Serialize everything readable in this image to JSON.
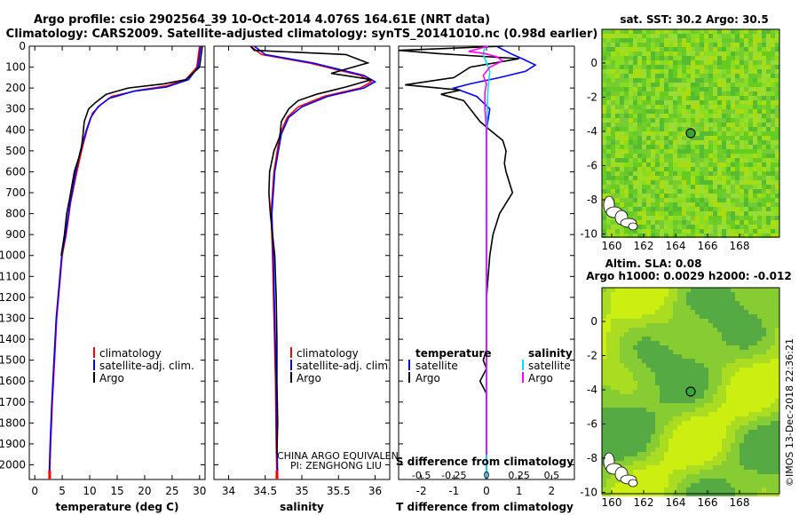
{
  "header": {
    "line1": "Argo profile: csio 2902564_39 10-Oct-2014 4.076S 164.61E (NRT data)",
    "line2": "Climatology: CARS2009. Satellite-adjusted climatology: synTS_20141010.nc (0.98d earlier)"
  },
  "colors": {
    "climatology": "#ff0000",
    "satellite": "#0000ff",
    "argo": "#000000",
    "sat_salinity": "#00e5ff",
    "argo_salinity": "#ff00ff"
  },
  "legend1": {
    "climatology": "climatology",
    "satellite": "satellite-adj. clim.",
    "argo": "Argo"
  },
  "legend3": {
    "temp_title": "temperature",
    "sal_title": "salinity",
    "satellite": "satellite",
    "argo": "Argo"
  },
  "credits": {
    "line1": "CHINA ARGO EQUIVALENT",
    "line2": "PI: ZENGHONG LIU"
  },
  "map1": {
    "title": "sat. SST: 30.2 Argo: 30.5"
  },
  "map2": {
    "title1": "Altim. SLA: 0.08",
    "title2": "Argo h1000: 0.0029 h2000: -0.012"
  },
  "watermark": "©IMOS 13-Dec-2018 22:36:21",
  "chart_data": [
    {
      "type": "line",
      "id": "temp",
      "xlabel": "temperature (deg C)",
      "ylabel": "",
      "xlim": [
        -1,
        31
      ],
      "ylim": [
        2070,
        0
      ],
      "xticks": [
        0,
        5,
        10,
        15,
        20,
        25,
        30
      ],
      "yticks": [
        0,
        100,
        200,
        300,
        400,
        500,
        600,
        700,
        800,
        900,
        1000,
        1100,
        1200,
        1300,
        1400,
        1500,
        1600,
        1700,
        1800,
        1900,
        2000
      ],
      "series": [
        {
          "name": "climatology",
          "color": "#ff0000",
          "points": [
            [
              30,
              0
            ],
            [
              29.8,
              40
            ],
            [
              29.5,
              100
            ],
            [
              27.5,
              160
            ],
            [
              24,
              190
            ],
            [
              19,
              210
            ],
            [
              14,
              240
            ],
            [
              12,
              280
            ],
            [
              10.5,
              320
            ],
            [
              9.5,
              400
            ],
            [
              8.5,
              500
            ],
            [
              7.5,
              620
            ],
            [
              6.5,
              750
            ],
            [
              5.7,
              900
            ],
            [
              5,
              1000
            ],
            [
              4.5,
              1150
            ],
            [
              4,
              1300
            ],
            [
              3.6,
              1500
            ],
            [
              3.2,
              1700
            ],
            [
              2.9,
              1900
            ],
            [
              2.7,
              2060
            ]
          ]
        },
        {
          "name": "satellite-adj. clim.",
          "color": "#0000ff",
          "points": [
            [
              30.2,
              0
            ],
            [
              30,
              40
            ],
            [
              29.7,
              100
            ],
            [
              28,
              160
            ],
            [
              24,
              195
            ],
            [
              18,
              215
            ],
            [
              13.5,
              250
            ],
            [
              11.5,
              290
            ],
            [
              10.2,
              340
            ],
            [
              9.4,
              400
            ],
            [
              8.3,
              500
            ],
            [
              7.3,
              620
            ],
            [
              6.4,
              750
            ],
            [
              5.6,
              900
            ],
            [
              4.9,
              1000
            ],
            [
              4.4,
              1150
            ],
            [
              3.9,
              1300
            ],
            [
              3.5,
              1500
            ],
            [
              3.1,
              1700
            ],
            [
              2.8,
              1900
            ],
            [
              2.6,
              2060
            ]
          ]
        },
        {
          "name": "Argo",
          "color": "#000000",
          "points": [
            [
              30.5,
              0
            ],
            [
              30.3,
              40
            ],
            [
              30,
              100
            ],
            [
              27.5,
              160
            ],
            [
              23.5,
              180
            ],
            [
              17,
              200
            ],
            [
              13,
              230
            ],
            [
              11,
              270
            ],
            [
              9.8,
              300
            ],
            [
              9,
              360
            ],
            [
              8.8,
              420
            ],
            [
              8.4,
              500
            ],
            [
              7.2,
              600
            ],
            [
              6.4,
              720
            ],
            [
              5.8,
              800
            ],
            [
              5.4,
              900
            ],
            [
              4.8,
              1000
            ]
          ]
        }
      ]
    },
    {
      "type": "line",
      "id": "sal",
      "xlabel": "salinity",
      "ylabel": "",
      "xlim": [
        33.8,
        36.2
      ],
      "ylim": [
        2070,
        0
      ],
      "xticks": [
        34,
        34.5,
        35,
        35.5,
        36
      ],
      "series": [
        {
          "name": "climatology",
          "color": "#ff0000",
          "points": [
            [
              34.3,
              0
            ],
            [
              34.45,
              40
            ],
            [
              35.1,
              80
            ],
            [
              35.8,
              140
            ],
            [
              35.95,
              170
            ],
            [
              35.8,
              200
            ],
            [
              35.3,
              240
            ],
            [
              34.95,
              290
            ],
            [
              34.8,
              340
            ],
            [
              34.7,
              420
            ],
            [
              34.62,
              600
            ],
            [
              34.58,
              800
            ],
            [
              34.6,
              1000
            ],
            [
              34.62,
              1300
            ],
            [
              34.64,
              1600
            ],
            [
              34.65,
              1900
            ],
            [
              34.66,
              2060
            ]
          ]
        },
        {
          "name": "satellite-adj. clim.",
          "color": "#0000ff",
          "points": [
            [
              34.35,
              0
            ],
            [
              34.5,
              40
            ],
            [
              35.15,
              80
            ],
            [
              35.85,
              140
            ],
            [
              36,
              170
            ],
            [
              35.85,
              200
            ],
            [
              35.35,
              240
            ],
            [
              35,
              290
            ],
            [
              34.82,
              340
            ],
            [
              34.72,
              420
            ],
            [
              34.63,
              600
            ],
            [
              34.59,
              800
            ],
            [
              34.61,
              1000
            ],
            [
              34.63,
              1300
            ],
            [
              34.65,
              1600
            ],
            [
              34.66,
              1900
            ],
            [
              34.67,
              2060
            ]
          ]
        },
        {
          "name": "Argo",
          "color": "#000000",
          "points": [
            [
              34.3,
              0
            ],
            [
              34.35,
              20
            ],
            [
              35.6,
              40
            ],
            [
              35.9,
              80
            ],
            [
              35.4,
              130
            ],
            [
              35.95,
              160
            ],
            [
              35.6,
              195
            ],
            [
              35.2,
              230
            ],
            [
              34.95,
              260
            ],
            [
              34.82,
              300
            ],
            [
              34.72,
              360
            ],
            [
              34.7,
              430
            ],
            [
              34.62,
              500
            ],
            [
              34.56,
              600
            ],
            [
              34.55,
              700
            ],
            [
              34.57,
              800
            ],
            [
              34.6,
              900
            ],
            [
              34.63,
              1000
            ],
            [
              34.65,
              1200
            ],
            [
              34.66,
              1400
            ],
            [
              34.66,
              1600
            ],
            [
              34.67,
              1800
            ],
            [
              34.66,
              1950
            ]
          ]
        }
      ]
    },
    {
      "type": "line",
      "id": "diff",
      "xlabel": "T difference from climatology",
      "xlabel2": "S difference from climatology",
      "xlim": [
        -2.7,
        2.7
      ],
      "ylim": [
        2070,
        0
      ],
      "xticks": [
        -2,
        -1,
        0,
        1,
        2
      ],
      "xticks2": [
        -0.5,
        -0.25,
        0,
        0.25,
        0.5
      ],
      "xtick2_labels": [
        "-0.5",
        "-0.25",
        "0",
        "0.25",
        "0.5"
      ],
      "series": [
        {
          "name": "temperature satellite",
          "color": "#0000ff",
          "points": [
            [
              0.3,
              0
            ],
            [
              0.8,
              40
            ],
            [
              1.1,
              60
            ],
            [
              1.5,
              90
            ],
            [
              1.2,
              120
            ],
            [
              0.4,
              150
            ],
            [
              -0.5,
              180
            ],
            [
              -1,
              200
            ],
            [
              -0.3,
              240
            ],
            [
              0.1,
              300
            ],
            [
              0,
              400
            ],
            [
              0,
              600
            ],
            [
              0,
              800
            ],
            [
              0,
              1000
            ],
            [
              0,
              1500
            ],
            [
              0,
              2060
            ]
          ]
        },
        {
          "name": "temperature Argo",
          "color": "#000000",
          "points": [
            [
              0.5,
              0
            ],
            [
              -2.7,
              20
            ],
            [
              -1.5,
              35
            ],
            [
              1,
              60
            ],
            [
              -0.5,
              100
            ],
            [
              -1,
              150
            ],
            [
              -2.5,
              185
            ],
            [
              -0.8,
              210
            ],
            [
              -1.4,
              230
            ],
            [
              -0.7,
              260
            ],
            [
              -0.5,
              300
            ],
            [
              -0.2,
              360
            ],
            [
              0.1,
              400
            ],
            [
              0.5,
              450
            ],
            [
              0.6,
              500
            ],
            [
              0.55,
              560
            ],
            [
              0.6,
              600
            ],
            [
              0.8,
              700
            ],
            [
              0.4,
              800
            ],
            [
              0.2,
              900
            ],
            [
              0.1,
              1000
            ],
            [
              0,
              1200
            ],
            [
              0,
              1450
            ],
            [
              -0.1,
              1500
            ],
            [
              0,
              1540
            ],
            [
              -0.2,
              1600
            ],
            [
              0,
              1660
            ],
            [
              0,
              1800
            ],
            [
              0,
              1950
            ]
          ]
        },
        {
          "name": "salinity satellite",
          "color": "#00e5ff",
          "points": [
            [
              -0.05,
              0
            ],
            [
              -0.1,
              40
            ],
            [
              0,
              80
            ],
            [
              0.1,
              120
            ],
            [
              0.05,
              200
            ],
            [
              0.02,
              300
            ],
            [
              0,
              500
            ],
            [
              -0.01,
              800
            ],
            [
              0,
              1200
            ],
            [
              0,
              1600
            ],
            [
              0,
              2060
            ]
          ]
        },
        {
          "name": "salinity Argo",
          "color": "#ff00ff",
          "points": [
            [
              0.05,
              0
            ],
            [
              -0.55,
              25
            ],
            [
              -0.05,
              35
            ],
            [
              0.3,
              50
            ],
            [
              0.5,
              70
            ],
            [
              0.1,
              100
            ],
            [
              -0.1,
              140
            ],
            [
              0,
              180
            ],
            [
              -0.05,
              220
            ],
            [
              -0.05,
              300
            ],
            [
              0,
              400
            ],
            [
              0,
              600
            ],
            [
              0,
              800
            ],
            [
              0,
              1000
            ],
            [
              0,
              1500
            ],
            [
              0,
              1950
            ]
          ]
        }
      ]
    }
  ],
  "maps": {
    "xticks": [
      "160",
      "162",
      "164",
      "166",
      "168"
    ],
    "yticks": [
      "0",
      "-2",
      "-4",
      "-6",
      "-8",
      "-10"
    ]
  }
}
